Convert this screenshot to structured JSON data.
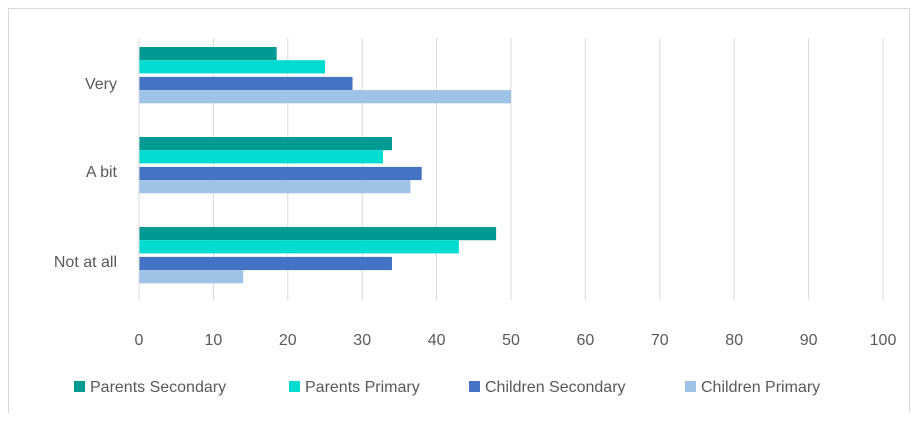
{
  "chart_data": {
    "type": "bar",
    "orientation": "horizontal",
    "categories": [
      "Very",
      "A bit",
      "Not at all"
    ],
    "series": [
      {
        "name": "Parents Secondary",
        "values": [
          18.5,
          34,
          48
        ],
        "color": "#009a94"
      },
      {
        "name": "Parents Primary",
        "values": [
          25,
          32.8,
          43
        ],
        "color": "#00ddd0"
      },
      {
        "name": "Children Secondary",
        "values": [
          28.7,
          38,
          34
        ],
        "color": "#4472c4"
      },
      {
        "name": "Children Primary",
        "values": [
          50,
          36.5,
          14
        ],
        "color": "#9dc3e6"
      }
    ],
    "xlim": [
      0,
      100
    ],
    "xticks": [
      "0",
      "10",
      "20",
      "30",
      "40",
      "50",
      "60",
      "70",
      "80",
      "90",
      "100"
    ],
    "grid": "vertical",
    "legend_position": "bottom",
    "title": "",
    "xlabel": "",
    "ylabel": ""
  }
}
